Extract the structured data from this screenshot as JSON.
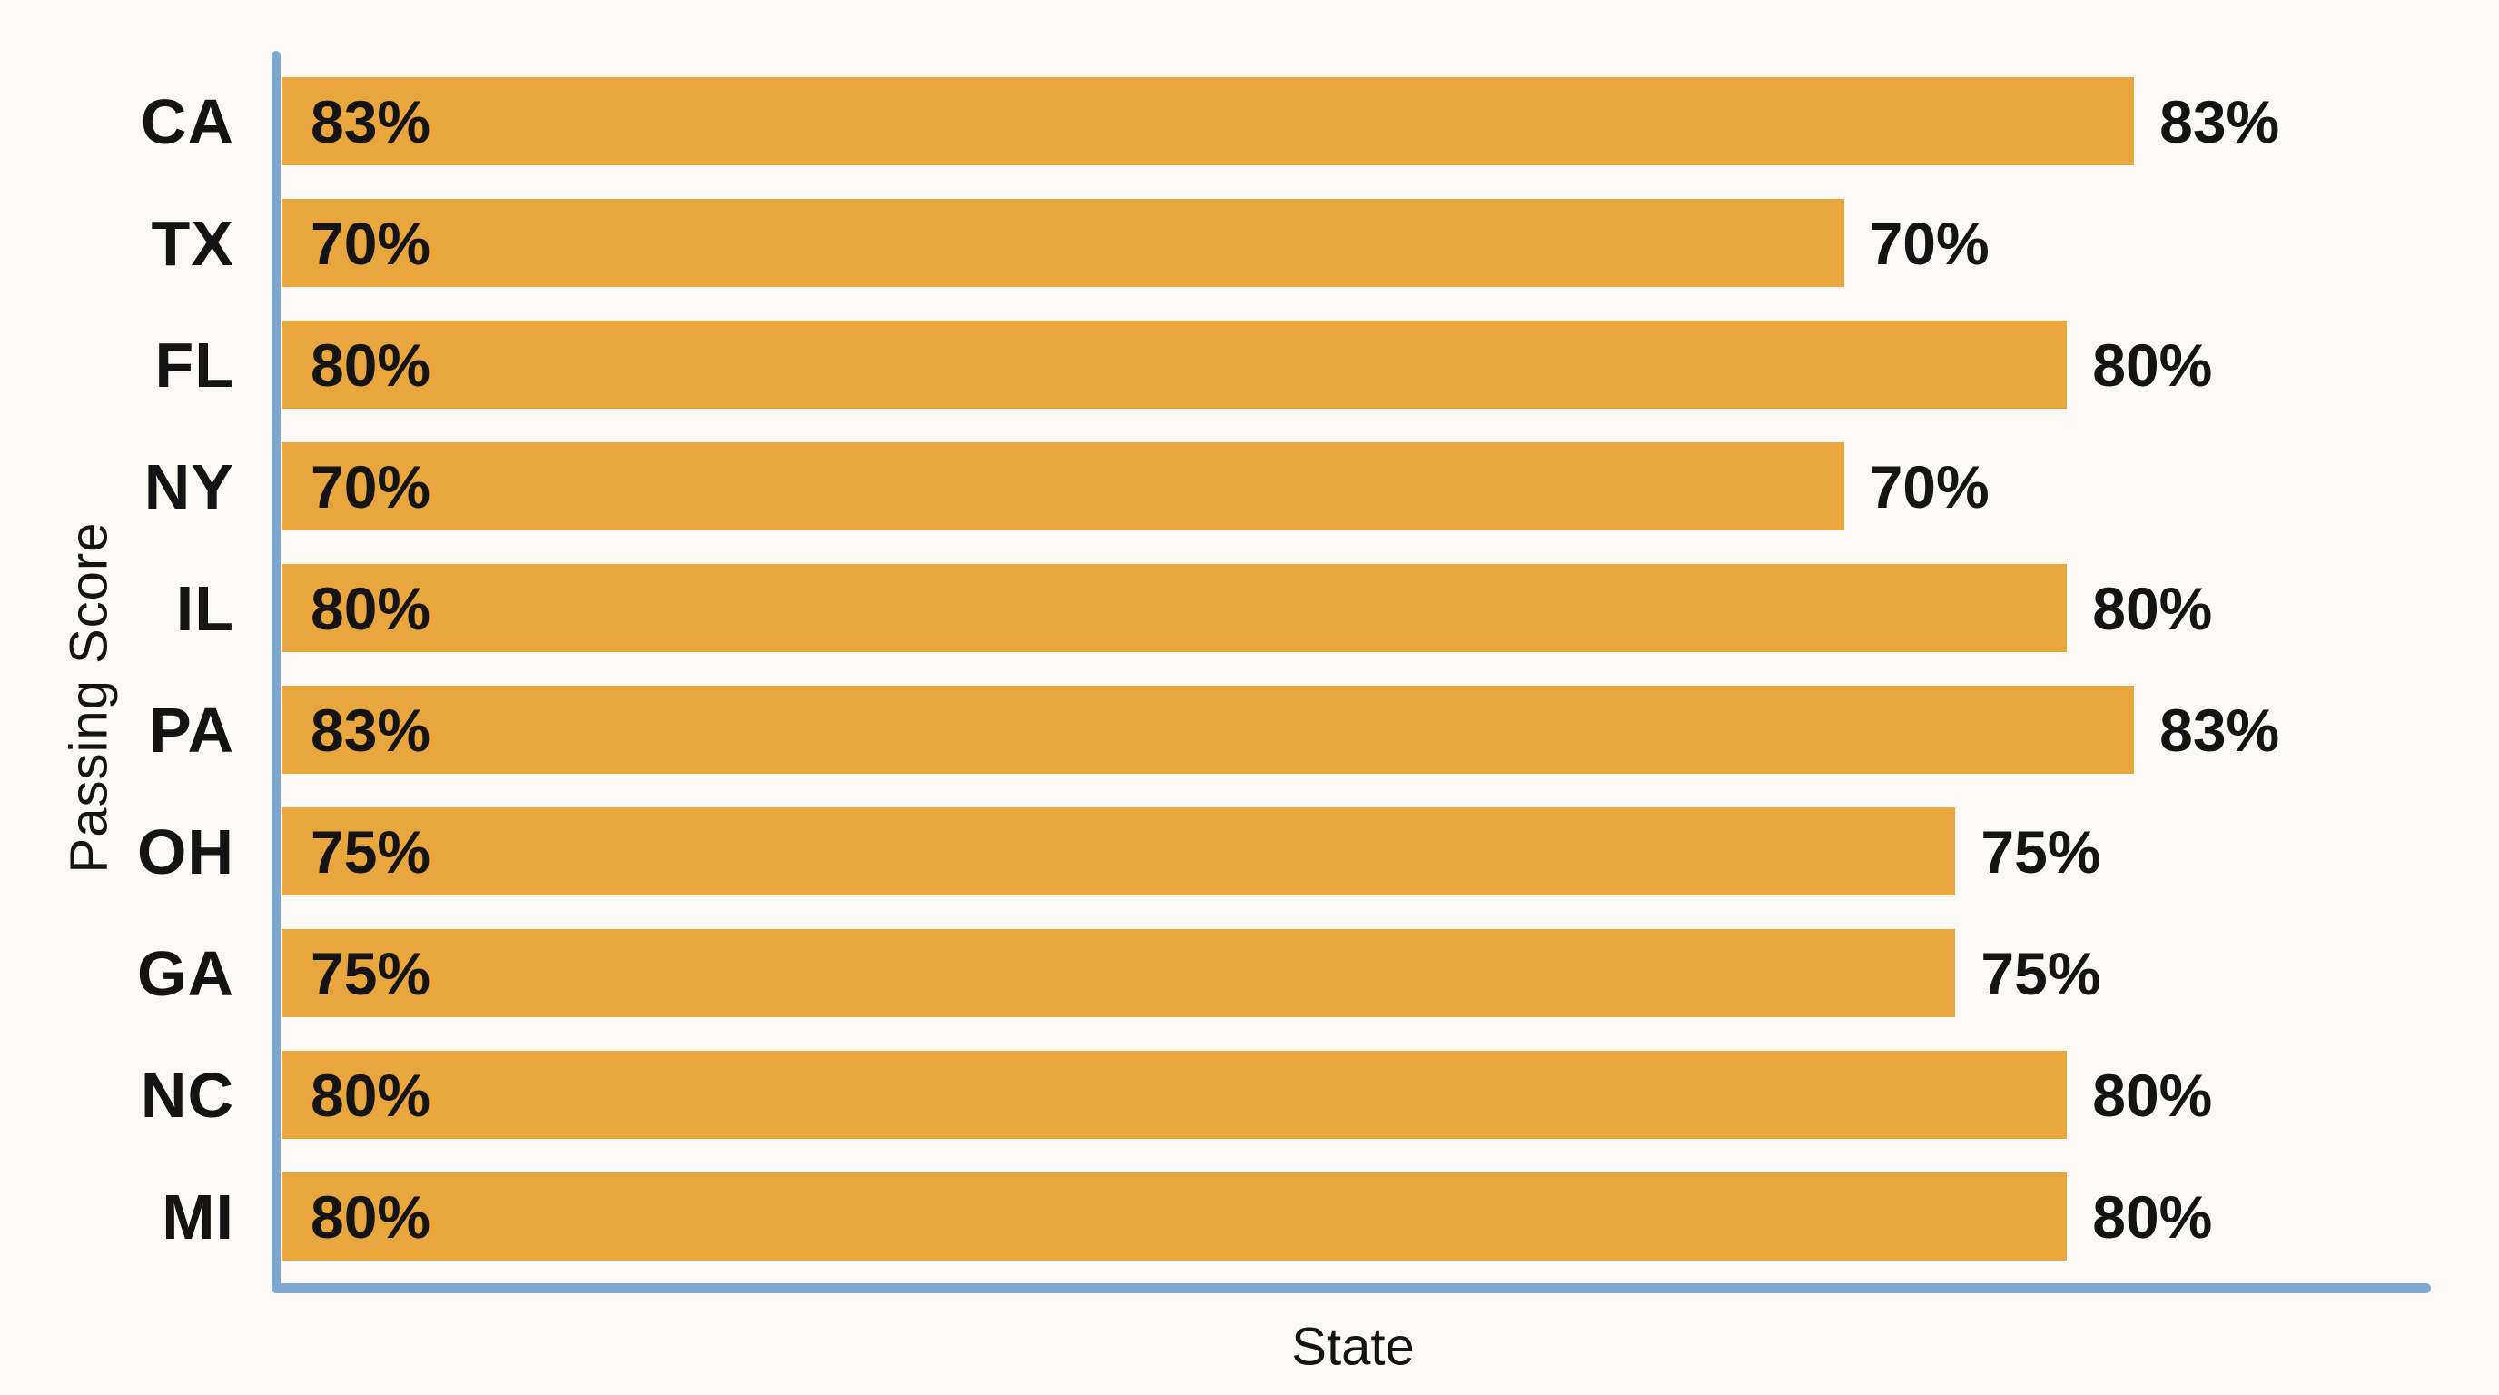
{
  "chart_data": {
    "type": "bar",
    "orientation": "horizontal",
    "title": "",
    "xlabel": "State",
    "ylabel": "Passing Score",
    "categories": [
      "CA",
      "TX",
      "FL",
      "NY",
      "IL",
      "PA",
      "OH",
      "GA",
      "NC",
      "MI"
    ],
    "values": [
      83,
      70,
      80,
      70,
      80,
      83,
      75,
      75,
      80,
      80
    ],
    "value_labels": [
      "83%",
      "70%",
      "80%",
      "70%",
      "80%",
      "83%",
      "75%",
      "75%",
      "80%",
      "80%"
    ],
    "value_label_position": "inside-start and outside-end",
    "xlim": [
      0,
      96.3
    ],
    "grid": false,
    "legend": false,
    "colors": {
      "bar": "#E8A63C",
      "axis": "#7FA6CE",
      "text": "#141414",
      "background": "#FAF9F6"
    }
  }
}
